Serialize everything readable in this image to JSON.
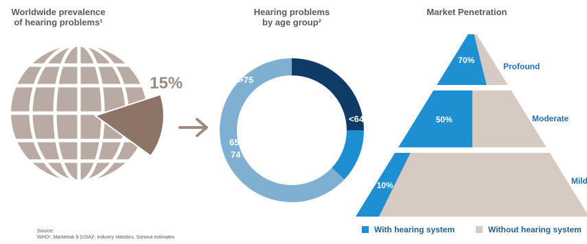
{
  "colors": {
    "globe": "#b9aba3",
    "slice": "#8c7466",
    "dark_blue": "#0e3c66",
    "mid_blue": "#1d8ed0",
    "light_blue": "#7fb0d1",
    "pyramid_fill": "#d6cac2",
    "pyramid_blue": "#1e8fd1",
    "label_blue": "#1c6fb5",
    "arrow": "#9c8a7e"
  },
  "chart_data": [
    {
      "type": "pie",
      "title": "Worldwide prevalence of hearing problems¹",
      "title_lines": [
        "Worldwide prevalence",
        "of hearing problems¹"
      ],
      "slices": [
        {
          "label": "15%",
          "value": 15
        }
      ],
      "icon": "globe-icon"
    },
    {
      "type": "pie",
      "title": "Hearing problems by age group²",
      "title_lines": [
        "Hearing problems",
        "by age group²"
      ],
      "slices": [
        {
          "label": ">75",
          "value": 25,
          "color": "#0e3c66"
        },
        {
          "label": "65–74",
          "value": 12,
          "color": "#1d8ed0"
        },
        {
          "label": "<64",
          "value": 63,
          "color": "#7fb0d1"
        }
      ]
    },
    {
      "type": "bar",
      "title": "Market Penetration",
      "categories": [
        "Profound",
        "Moderate",
        "Mild"
      ],
      "series": [
        {
          "name": "With hearing system",
          "values": [
            70,
            50,
            10
          ]
        },
        {
          "name": "Without hearing system",
          "values": [
            30,
            50,
            90
          ]
        }
      ],
      "value_labels": [
        "70%",
        "50%",
        "10%"
      ],
      "legend_position": "bottom"
    }
  ],
  "source": {
    "label": "Source:",
    "text": "WHO¹, Marketrak 9 (USA)², industry statistics, Sonova estimates"
  }
}
